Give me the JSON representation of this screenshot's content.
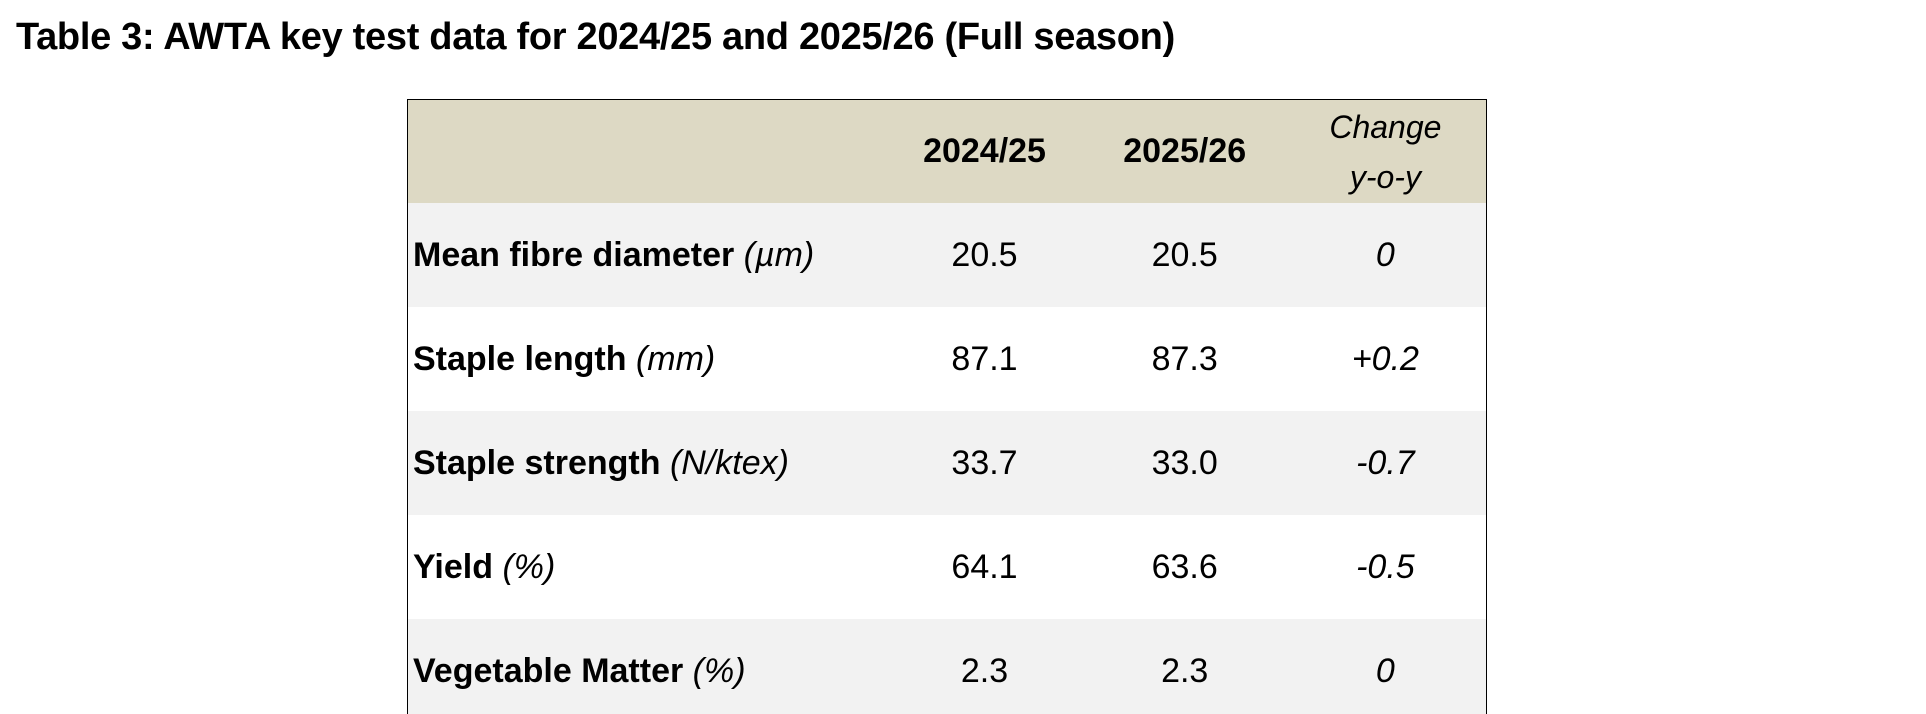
{
  "title": "Table 3: AWTA key test data for 2024/25 and 2025/26 (Full season)",
  "table": {
    "headers": {
      "label": "",
      "year1": "2024/25",
      "year2": "2025/26",
      "change_line1": "Change",
      "change_line2": "y-o-y"
    },
    "rows": [
      {
        "name": "Mean fibre diameter",
        "unit": "(µm)",
        "year1": "20.5",
        "year2": "20.5",
        "change": "0"
      },
      {
        "name": "Staple length",
        "unit": "(mm)",
        "year1": "87.1",
        "year2": "87.3",
        "change": "+0.2"
      },
      {
        "name": "Staple strength",
        "unit": "(N/ktex)",
        "year1": "33.7",
        "year2": "33.0",
        "change": "-0.7"
      },
      {
        "name": "Yield",
        "unit": "(%)",
        "year1": "64.1",
        "year2": "63.6",
        "change": "-0.5"
      },
      {
        "name": "Vegetable Matter",
        "unit": "(%)",
        "year1": "2.3",
        "year2": "2.3",
        "change": "0"
      }
    ]
  },
  "colors": {
    "header_bg": "#ddd9c4",
    "row_shade": "#f2f2f2",
    "row_plain": "#ffffff"
  }
}
